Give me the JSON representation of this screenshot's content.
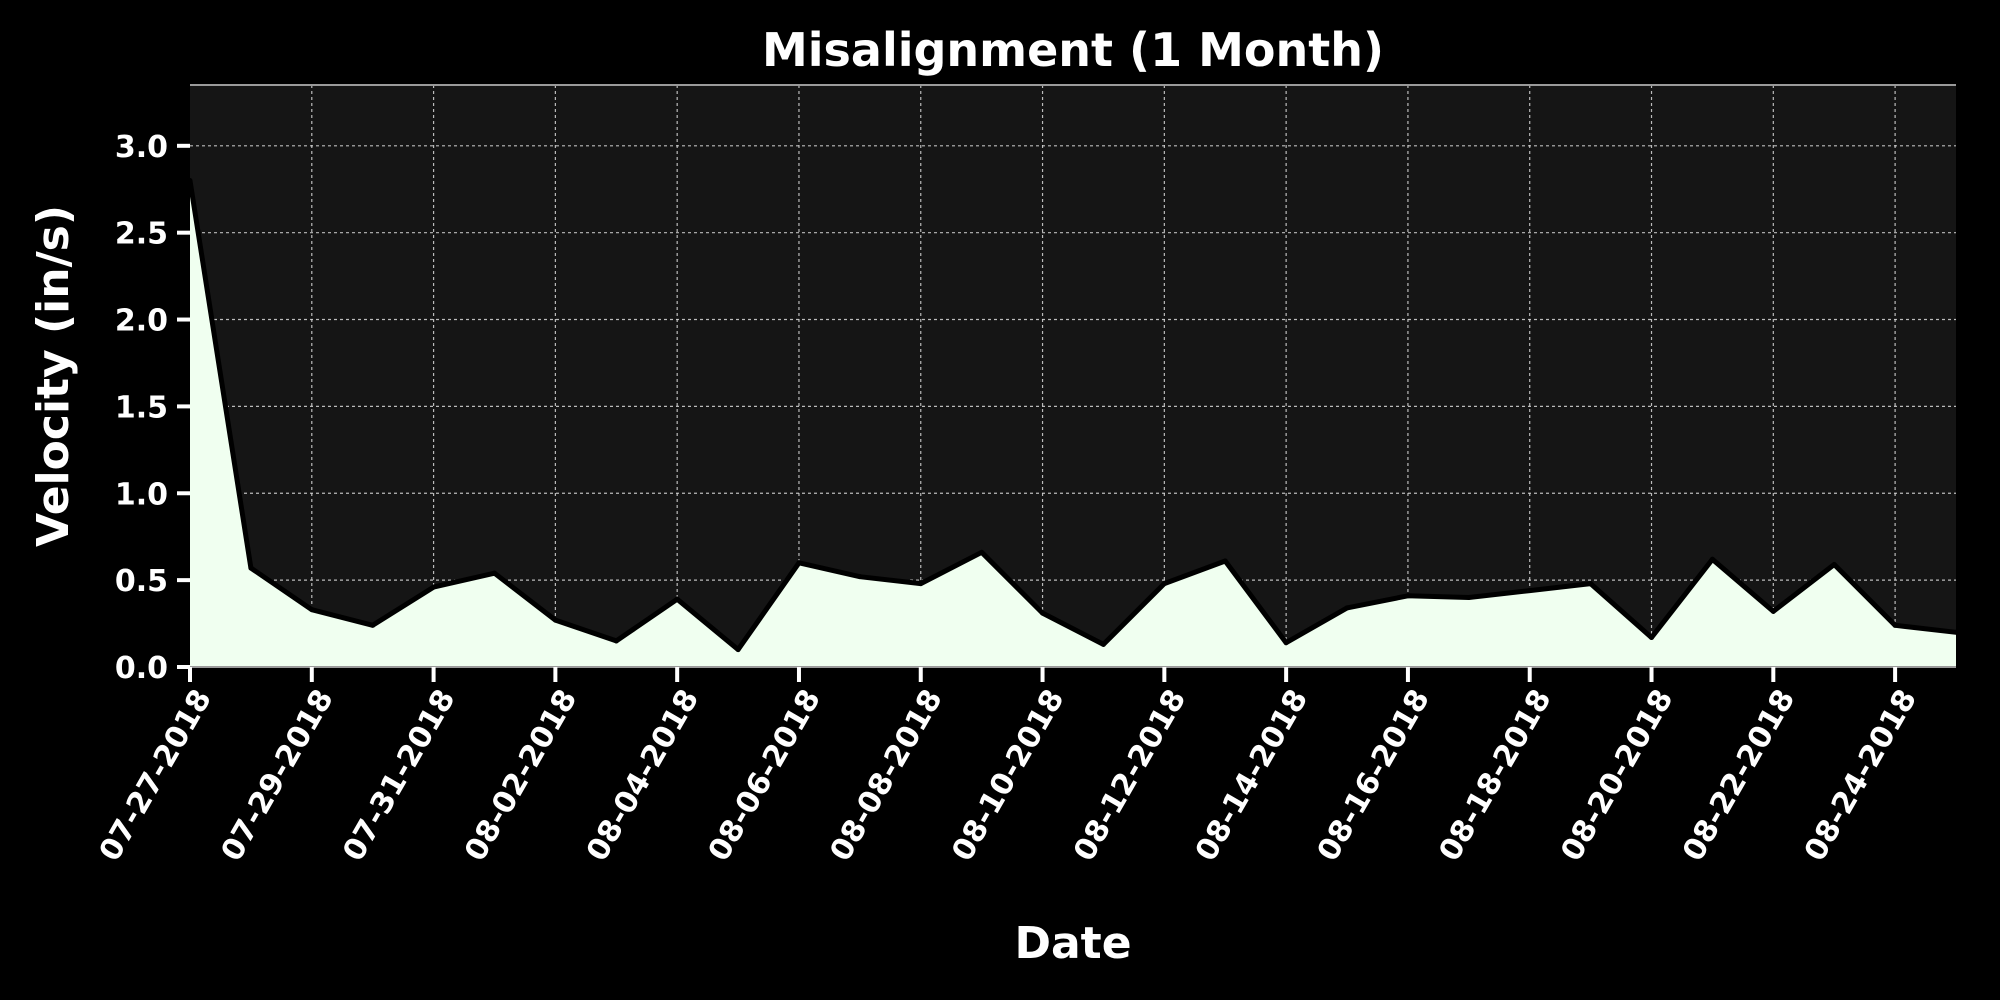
{
  "chart_data": {
    "type": "area",
    "title": "Misalignment (1 Month)",
    "xlabel": "Date",
    "ylabel": "Velocity (in/s)",
    "x": [
      "07-27-2018",
      "07-28-2018",
      "07-29-2018",
      "07-30-2018",
      "07-31-2018",
      "08-01-2018",
      "08-02-2018",
      "08-03-2018",
      "08-04-2018",
      "08-05-2018",
      "08-06-2018",
      "08-07-2018",
      "08-08-2018",
      "08-09-2018",
      "08-10-2018",
      "08-11-2018",
      "08-12-2018",
      "08-13-2018",
      "08-14-2018",
      "08-15-2018",
      "08-16-2018",
      "08-17-2018",
      "08-18-2018",
      "08-19-2018",
      "08-20-2018",
      "08-21-2018",
      "08-22-2018",
      "08-23-2018",
      "08-24-2018",
      "08-25-2018"
    ],
    "values": [
      2.8,
      0.57,
      0.33,
      0.24,
      0.46,
      0.54,
      0.27,
      0.15,
      0.39,
      0.1,
      0.6,
      0.52,
      0.48,
      0.66,
      0.31,
      0.13,
      0.48,
      0.61,
      0.14,
      0.34,
      0.41,
      0.4,
      0.44,
      0.48,
      0.17,
      0.62,
      0.32,
      0.59,
      0.24,
      0.2
    ],
    "xticks": [
      "07-27-2018",
      "07-29-2018",
      "07-31-2018",
      "08-02-2018",
      "08-04-2018",
      "08-06-2018",
      "08-08-2018",
      "08-10-2018",
      "08-12-2018",
      "08-14-2018",
      "08-16-2018",
      "08-18-2018",
      "08-20-2018",
      "08-22-2018",
      "08-24-2018"
    ],
    "yticks": [
      "0.0",
      "0.5",
      "1.0",
      "1.5",
      "2.0",
      "2.5",
      "3.0"
    ],
    "ylim": [
      0,
      3.35
    ],
    "grid": true,
    "colors": {
      "background": "#000000",
      "plot_area": "#151515",
      "fill": "#f0fff0",
      "line": "#000000",
      "text": "#ffffff",
      "grid": "#d8d8d8",
      "spine": "#9a9a9a"
    }
  }
}
